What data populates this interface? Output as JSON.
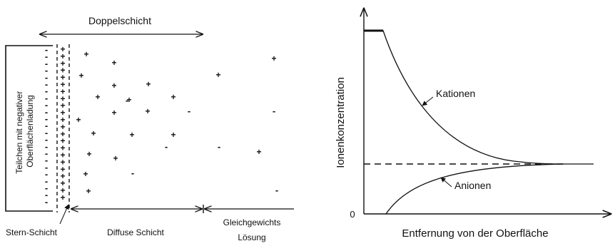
{
  "left_diagram": {
    "top_label": "Doppelschicht",
    "particle_label_line1": "Teilchen mit negativer",
    "particle_label_line2": "Oberflächenladung",
    "stern_label": "Stern-Schicht",
    "diffuse_label": "Diffuse Schicht",
    "bulk_label_line1": "Gleichgewichts",
    "bulk_label_line2": "Lösung",
    "surface_charges": [
      "-",
      "-",
      "-",
      "-",
      "-",
      "-",
      "-",
      "-",
      "-",
      "-",
      "-",
      "-",
      "-",
      "-",
      "-",
      "-",
      "-",
      "-",
      "-",
      "-",
      "-",
      "-",
      "-"
    ],
    "stern_charges": [
      "+",
      "+",
      "+",
      "+",
      "+",
      "+",
      "+",
      "+",
      "+",
      "+",
      "+",
      "+",
      "+",
      "+",
      "+",
      "+",
      "+",
      "+",
      "+",
      "+",
      "+",
      "+"
    ],
    "diffuse_charges": [
      "+",
      "+",
      "+",
      "+",
      "+",
      "+",
      "+",
      "+",
      "+",
      "+",
      "+",
      "+",
      "+",
      "+",
      "+",
      "+",
      "+",
      "+",
      "-",
      "-",
      "-",
      "-"
    ],
    "bulk_charges": [
      "+",
      "+",
      "+",
      "-",
      "-",
      "-"
    ]
  },
  "right_chart": {
    "y_axis_label": "Ionenkonzentration",
    "x_axis_label": "Entfernung von der Oberfläche",
    "origin_label": "0",
    "cations_label": "Kationen",
    "anions_label": "Anionen"
  }
}
